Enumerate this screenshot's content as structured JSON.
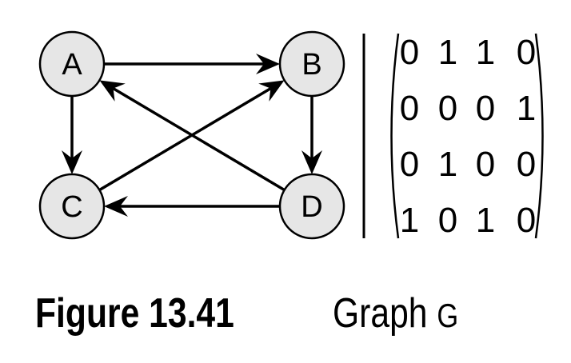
{
  "graph": {
    "nodes": [
      {
        "id": "A",
        "label": "A"
      },
      {
        "id": "B",
        "label": "B"
      },
      {
        "id": "C",
        "label": "C"
      },
      {
        "id": "D",
        "label": "D"
      }
    ],
    "edges": [
      {
        "from": "A",
        "to": "B"
      },
      {
        "from": "A",
        "to": "C"
      },
      {
        "from": "B",
        "to": "D"
      },
      {
        "from": "C",
        "to": "B"
      },
      {
        "from": "D",
        "to": "A"
      },
      {
        "from": "D",
        "to": "C"
      }
    ]
  },
  "matrix": {
    "rows": [
      [
        "0",
        "1",
        "1",
        "0"
      ],
      [
        "0",
        "0",
        "0",
        "1"
      ],
      [
        "0",
        "1",
        "0",
        "0"
      ],
      [
        "1",
        "0",
        "1",
        "0"
      ]
    ]
  },
  "caption": {
    "number": "Figure 13.41",
    "text": "Graph ",
    "variable": "G"
  },
  "colors": {
    "node_fill": "#e6e6e6",
    "stroke": "#000000",
    "background": "#ffffff"
  }
}
